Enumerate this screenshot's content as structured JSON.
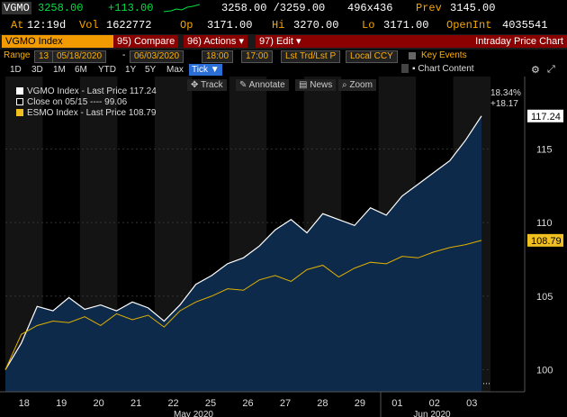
{
  "quote": {
    "ticker": "VGMO",
    "last": "3258.00",
    "change": "+113.00",
    "bid_ask": "3258.00 /3259.00",
    "size": "496x436",
    "prev_label": "Prev",
    "prev": "3145.00",
    "at_label": "At",
    "time": "12:19d",
    "vol_label": "Vol",
    "vol": "1622772",
    "op_label": "Op",
    "op": "3171.00",
    "hi_label": "Hi",
    "hi": "3270.00",
    "lo_label": "Lo",
    "lo": "3171.00",
    "openint_label": "OpenInt",
    "openint": "4035541"
  },
  "menu": {
    "security": "VGMO Index",
    "compare": "95) Compare",
    "actions": "96) Actions ▾",
    "edit": "97) Edit ▾",
    "title": "Intraday Price Chart"
  },
  "range": {
    "label": "Range",
    "days": "13",
    "start": "05/18/2020",
    "end": "06/03/2020",
    "time_start": "18:00",
    "time_end": "17:00",
    "price_field": "Lst Trd/Lst P",
    "currency": "Local CCY",
    "key_events": "Key Events"
  },
  "periods": [
    "1D",
    "3D",
    "1M",
    "6M",
    "YTD",
    "1Y",
    "5Y",
    "Max"
  ],
  "period_selected": "Tick ▼",
  "chart_content": "Chart Content",
  "tools": {
    "track": "Track",
    "annotate": "Annotate",
    "news": "News",
    "zoom": "Zoom"
  },
  "legend": [
    {
      "text": "VGMO Index - Last Price 117.24",
      "color": "#ffffff"
    },
    {
      "text": "Close on 05/15 ----     99.06",
      "color": "#ffffff"
    },
    {
      "text": "ESMO Index - Last Price 108.79",
      "color": "#f0c020"
    }
  ],
  "colors": {
    "accent": "#f29b00",
    "vgmo_line": "#ffffff",
    "area_fill": "#0d2a4a",
    "esmo_line": "#e0b000",
    "last_label_bg": "#ffffff",
    "esmo_label_bg": "#f0c020"
  },
  "chart_data": {
    "type": "line",
    "x_labels": [
      "18",
      "19",
      "20",
      "21",
      "22",
      "25",
      "26",
      "27",
      "28",
      "29",
      "01",
      "02",
      "03"
    ],
    "month_labels": [
      "May 2020",
      "Jun 2020"
    ],
    "ylim": [
      98.5,
      119
    ],
    "y_ticks": [
      100,
      105,
      110,
      115
    ],
    "reference_close": 99.06,
    "annotation_pct": "18.34%",
    "annotation_chg": "+18.17",
    "series": [
      {
        "name": "VGMO Index - Last Price",
        "last_label": "117.24",
        "values": [
          100,
          101.8,
          104.3,
          104.0,
          104.9,
          104.1,
          104.4,
          104.0,
          104.6,
          104.2,
          103.3,
          104.4,
          105.8,
          106.4,
          107.2,
          107.6,
          108.4,
          109.5,
          110.2,
          109.3,
          110.6,
          110.2,
          109.8,
          111.0,
          110.5,
          111.8,
          112.6,
          113.4,
          114.2,
          115.6,
          117.24
        ]
      },
      {
        "name": "ESMO Index - Last Price",
        "last_label": "108.79",
        "values": [
          100,
          102.4,
          103.0,
          103.3,
          103.2,
          103.6,
          103.0,
          103.8,
          103.4,
          103.7,
          102.9,
          104.0,
          104.6,
          105.0,
          105.5,
          105.4,
          106.1,
          106.4,
          106.0,
          106.8,
          107.1,
          106.3,
          106.9,
          107.3,
          107.2,
          107.7,
          107.6,
          108.0,
          108.3,
          108.5,
          108.79
        ]
      }
    ]
  }
}
